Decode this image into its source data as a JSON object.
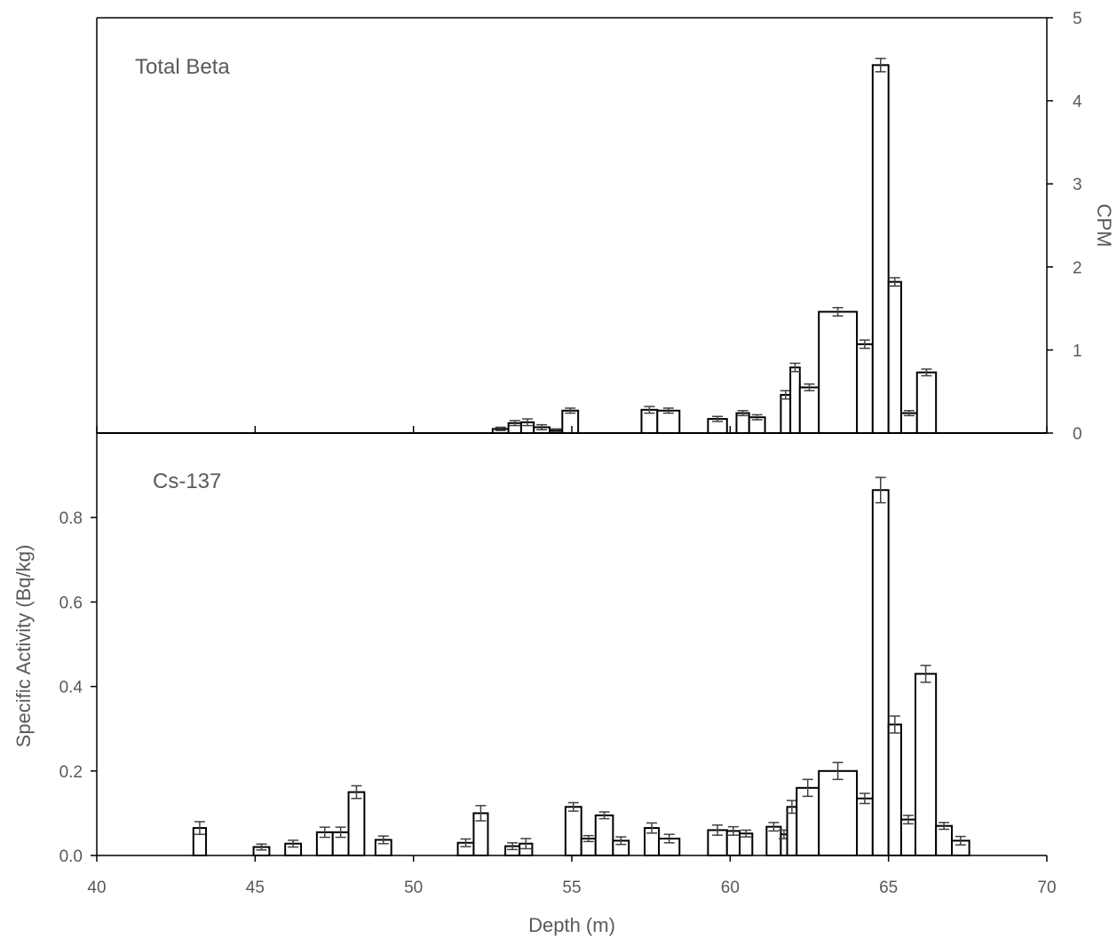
{
  "chart_data": [
    {
      "type": "bar",
      "title": "Total Beta",
      "xlabel": "Depth (m)",
      "ylabel": "CPM",
      "y_axis_side": "right",
      "xlim": [
        40,
        70
      ],
      "ylim": [
        0,
        5
      ],
      "yticks": [
        "0",
        "1",
        "2",
        "3",
        "4",
        "5"
      ],
      "grid": false,
      "bars": [
        {
          "x0": 52.5,
          "x1": 53.0,
          "value": 0.05,
          "error": 0.02
        },
        {
          "x0": 53.0,
          "x1": 53.4,
          "value": 0.12,
          "error": 0.03
        },
        {
          "x0": 53.4,
          "x1": 53.8,
          "value": 0.13,
          "error": 0.04
        },
        {
          "x0": 53.8,
          "x1": 54.3,
          "value": 0.07,
          "error": 0.03
        },
        {
          "x0": 54.3,
          "x1": 54.7,
          "value": 0.03,
          "error": 0.02
        },
        {
          "x0": 54.7,
          "x1": 55.2,
          "value": 0.27,
          "error": 0.03
        },
        {
          "x0": 57.2,
          "x1": 57.7,
          "value": 0.28,
          "error": 0.04
        },
        {
          "x0": 57.7,
          "x1": 58.4,
          "value": 0.27,
          "error": 0.03
        },
        {
          "x0": 59.3,
          "x1": 59.9,
          "value": 0.17,
          "error": 0.03
        },
        {
          "x0": 60.2,
          "x1": 60.6,
          "value": 0.24,
          "error": 0.03
        },
        {
          "x0": 60.6,
          "x1": 61.1,
          "value": 0.19,
          "error": 0.03
        },
        {
          "x0": 61.6,
          "x1": 61.9,
          "value": 0.46,
          "error": 0.05
        },
        {
          "x0": 61.9,
          "x1": 62.2,
          "value": 0.79,
          "error": 0.05
        },
        {
          "x0": 62.2,
          "x1": 62.8,
          "value": 0.55,
          "error": 0.04
        },
        {
          "x0": 62.8,
          "x1": 64.0,
          "value": 1.46,
          "error": 0.05
        },
        {
          "x0": 64.0,
          "x1": 64.5,
          "value": 1.07,
          "error": 0.05
        },
        {
          "x0": 64.5,
          "x1": 65.0,
          "value": 4.43,
          "error": 0.08
        },
        {
          "x0": 65.0,
          "x1": 65.4,
          "value": 1.82,
          "error": 0.05
        },
        {
          "x0": 65.4,
          "x1": 65.9,
          "value": 0.24,
          "error": 0.03
        },
        {
          "x0": 65.9,
          "x1": 66.5,
          "value": 0.73,
          "error": 0.04
        }
      ]
    },
    {
      "type": "bar",
      "title": "Cs-137",
      "xlabel": "Depth (m)",
      "ylabel": "Specific Activity (Bq/kg)",
      "y_axis_side": "left",
      "xlim": [
        40,
        70
      ],
      "ylim": [
        0,
        1.0
      ],
      "yticks": [
        "0.0",
        "0.2",
        "0.4",
        "0.6",
        "0.8"
      ],
      "xticks": [
        "40",
        "45",
        "50",
        "55",
        "60",
        "65",
        "70"
      ],
      "grid": false,
      "bars": [
        {
          "x0": 43.05,
          "x1": 43.45,
          "value": 0.065,
          "error": 0.015
        },
        {
          "x0": 44.95,
          "x1": 45.45,
          "value": 0.02,
          "error": 0.007
        },
        {
          "x0": 45.95,
          "x1": 46.45,
          "value": 0.028,
          "error": 0.008
        },
        {
          "x0": 46.95,
          "x1": 47.45,
          "value": 0.055,
          "error": 0.012
        },
        {
          "x0": 47.45,
          "x1": 47.95,
          "value": 0.055,
          "error": 0.012
        },
        {
          "x0": 47.95,
          "x1": 48.45,
          "value": 0.15,
          "error": 0.015
        },
        {
          "x0": 48.8,
          "x1": 49.3,
          "value": 0.037,
          "error": 0.009
        },
        {
          "x0": 51.4,
          "x1": 51.9,
          "value": 0.03,
          "error": 0.009
        },
        {
          "x0": 51.9,
          "x1": 52.35,
          "value": 0.1,
          "error": 0.018
        },
        {
          "x0": 52.9,
          "x1": 53.35,
          "value": 0.022,
          "error": 0.008
        },
        {
          "x0": 53.35,
          "x1": 53.75,
          "value": 0.028,
          "error": 0.012
        },
        {
          "x0": 54.8,
          "x1": 55.3,
          "value": 0.115,
          "error": 0.01
        },
        {
          "x0": 55.3,
          "x1": 55.75,
          "value": 0.04,
          "error": 0.007
        },
        {
          "x0": 55.75,
          "x1": 56.3,
          "value": 0.095,
          "error": 0.008
        },
        {
          "x0": 56.3,
          "x1": 56.8,
          "value": 0.035,
          "error": 0.009
        },
        {
          "x0": 57.3,
          "x1": 57.75,
          "value": 0.065,
          "error": 0.012
        },
        {
          "x0": 57.75,
          "x1": 58.4,
          "value": 0.04,
          "error": 0.01
        },
        {
          "x0": 59.3,
          "x1": 59.9,
          "value": 0.06,
          "error": 0.012
        },
        {
          "x0": 59.9,
          "x1": 60.3,
          "value": 0.058,
          "error": 0.01
        },
        {
          "x0": 60.3,
          "x1": 60.7,
          "value": 0.052,
          "error": 0.008
        },
        {
          "x0": 61.15,
          "x1": 61.6,
          "value": 0.068,
          "error": 0.01
        },
        {
          "x0": 61.6,
          "x1": 61.8,
          "value": 0.05,
          "error": 0.01
        },
        {
          "x0": 61.8,
          "x1": 62.1,
          "value": 0.115,
          "error": 0.015
        },
        {
          "x0": 62.1,
          "x1": 62.8,
          "value": 0.16,
          "error": 0.02
        },
        {
          "x0": 62.8,
          "x1": 64.0,
          "value": 0.2,
          "error": 0.02
        },
        {
          "x0": 64.0,
          "x1": 64.5,
          "value": 0.135,
          "error": 0.012
        },
        {
          "x0": 64.5,
          "x1": 65.0,
          "value": 0.865,
          "error": 0.03
        },
        {
          "x0": 65.0,
          "x1": 65.4,
          "value": 0.31,
          "error": 0.02
        },
        {
          "x0": 65.4,
          "x1": 65.85,
          "value": 0.085,
          "error": 0.01
        },
        {
          "x0": 65.85,
          "x1": 66.5,
          "value": 0.43,
          "error": 0.02
        },
        {
          "x0": 66.5,
          "x1": 67.0,
          "value": 0.07,
          "error": 0.008
        },
        {
          "x0": 67.0,
          "x1": 67.55,
          "value": 0.035,
          "error": 0.01
        }
      ]
    }
  ]
}
